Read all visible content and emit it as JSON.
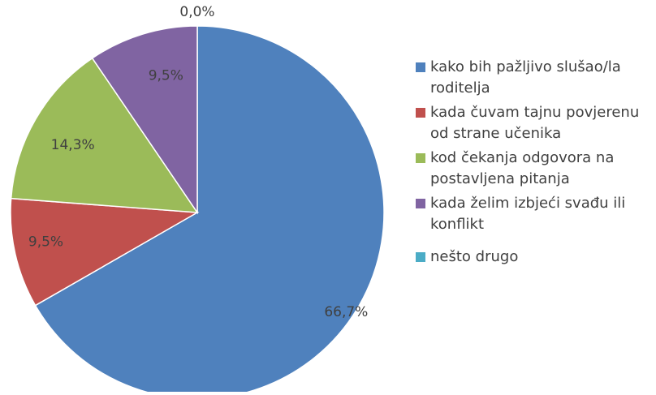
{
  "chart_data": {
    "type": "pie",
    "title": "",
    "slices": [
      {
        "label": "kako bih pažljivo slušao/la roditelja",
        "value": 66.7,
        "value_label": "66,7%",
        "color": "#4F81BD"
      },
      {
        "label": "kada čuvam tajnu povjerenu od strane učenika",
        "value": 9.5,
        "value_label": "9,5%",
        "color": "#C0504D"
      },
      {
        "label": "kod čekanja odgovora na postavljena pitanja",
        "value": 14.3,
        "value_label": "14,3%",
        "color": "#9BBB59"
      },
      {
        "label": "kada želim izbjeći svađu ili konflikt",
        "value": 9.5,
        "value_label": "9,5%",
        "color": "#8064A2"
      },
      {
        "label": "nešto drugo",
        "value": 0.0,
        "value_label": "0,0%",
        "color": "#4BACC6"
      }
    ],
    "legend_position": "right"
  }
}
